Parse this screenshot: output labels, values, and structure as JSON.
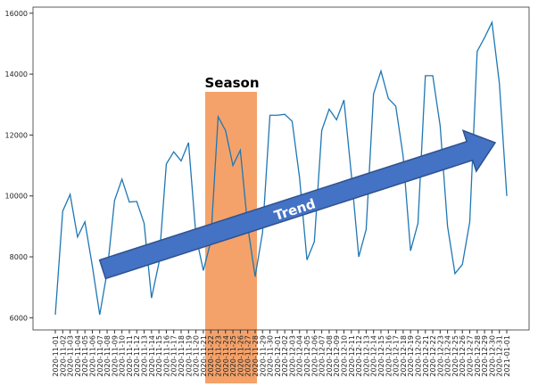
{
  "chart_data": {
    "type": "line",
    "categories": [
      "2020-11-01",
      "2020-11-02",
      "2020-11-03",
      "2020-11-04",
      "2020-11-05",
      "2020-11-06",
      "2020-11-07",
      "2020-11-08",
      "2020-11-09",
      "2020-11-10",
      "2020-11-11",
      "2020-11-12",
      "2020-11-13",
      "2020-11-14",
      "2020-11-15",
      "2020-11-16",
      "2020-11-17",
      "2020-11-18",
      "2020-11-19",
      "2020-11-20",
      "2020-11-21",
      "2020-11-22",
      "2020-11-23",
      "2020-11-24",
      "2020-11-25",
      "2020-11-26",
      "2020-11-27",
      "2020-11-28",
      "2020-11-29",
      "2020-11-30",
      "2020-12-01",
      "2020-12-02",
      "2020-12-03",
      "2020-12-04",
      "2020-12-05",
      "2020-12-06",
      "2020-12-07",
      "2020-12-08",
      "2020-12-09",
      "2020-12-10",
      "2020-12-11",
      "2020-12-12",
      "2020-12-13",
      "2020-12-14",
      "2020-12-15",
      "2020-12-16",
      "2020-12-17",
      "2020-12-18",
      "2020-12-19",
      "2020-12-20",
      "2020-12-21",
      "2020-12-22",
      "2020-12-23",
      "2020-12-24",
      "2020-12-25",
      "2020-12-26",
      "2020-12-27",
      "2020-12-28",
      "2020-12-29",
      "2020-12-30",
      "2020-12-31",
      "2021-01-01"
    ],
    "values": [
      6100,
      9500,
      10050,
      8650,
      9150,
      7700,
      6100,
      7500,
      9850,
      10550,
      9800,
      9820,
      9100,
      6650,
      7800,
      11050,
      11450,
      11150,
      11750,
      8700,
      7550,
      8500,
      12600,
      12150,
      11000,
      11500,
      9000,
      7350,
      8800,
      12650,
      12650,
      12680,
      12450,
      10600,
      7900,
      8500,
      12150,
      12850,
      12500,
      13150,
      10700,
      8000,
      8900,
      13350,
      14100,
      13200,
      12950,
      11300,
      8200,
      9100,
      13950,
      13950,
      12300,
      9000,
      7450,
      7750,
      9150,
      14750,
      15200,
      15700,
      13700,
      10000
    ],
    "color": "#1f77b4",
    "ylim": [
      5600,
      16200
    ],
    "yticks": [
      6000,
      8000,
      10000,
      12000,
      14000,
      16000
    ],
    "annotations": [
      "Season",
      "Trend"
    ]
  }
}
